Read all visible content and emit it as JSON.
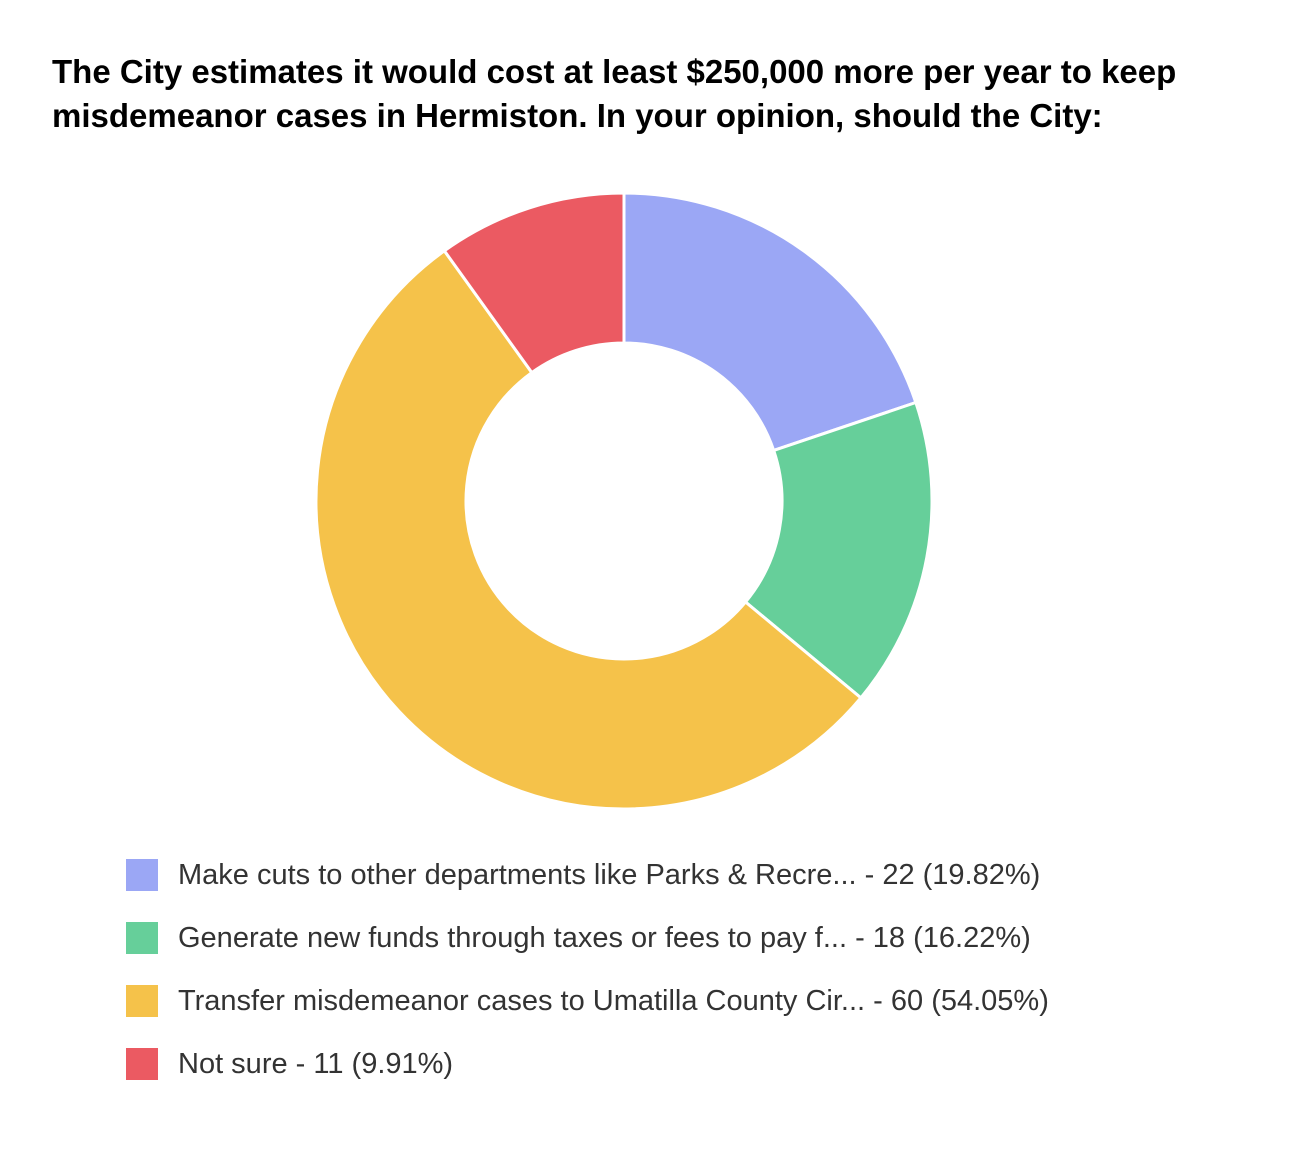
{
  "chart_data": {
    "type": "pie",
    "variant": "donut",
    "title": "The City estimates it would cost at least $250,000 more per year to keep misdemeanor cases in Hermiston. In your opinion, should the City:",
    "slices": [
      {
        "label": "Make cuts to other departments like Parks & Recre... - 22 (19.82%)",
        "count": 22,
        "percent": 19.82,
        "color": "#9BA7F5"
      },
      {
        "label": "Generate new funds through taxes or fees to pay f... - 18 (16.22%)",
        "count": 18,
        "percent": 16.22,
        "color": "#66CF9A"
      },
      {
        "label": "Transfer misdemeanor cases to Umatilla County Cir... - 60 (54.05%)",
        "count": 60,
        "percent": 54.05,
        "color": "#F5C24A"
      },
      {
        "label": "Not sure - 11 (9.91%)",
        "count": 11,
        "percent": 9.91,
        "color": "#EB5A62"
      }
    ],
    "start_angle": "12 o'clock",
    "direction": "clockwise",
    "legend_position": "bottom"
  }
}
